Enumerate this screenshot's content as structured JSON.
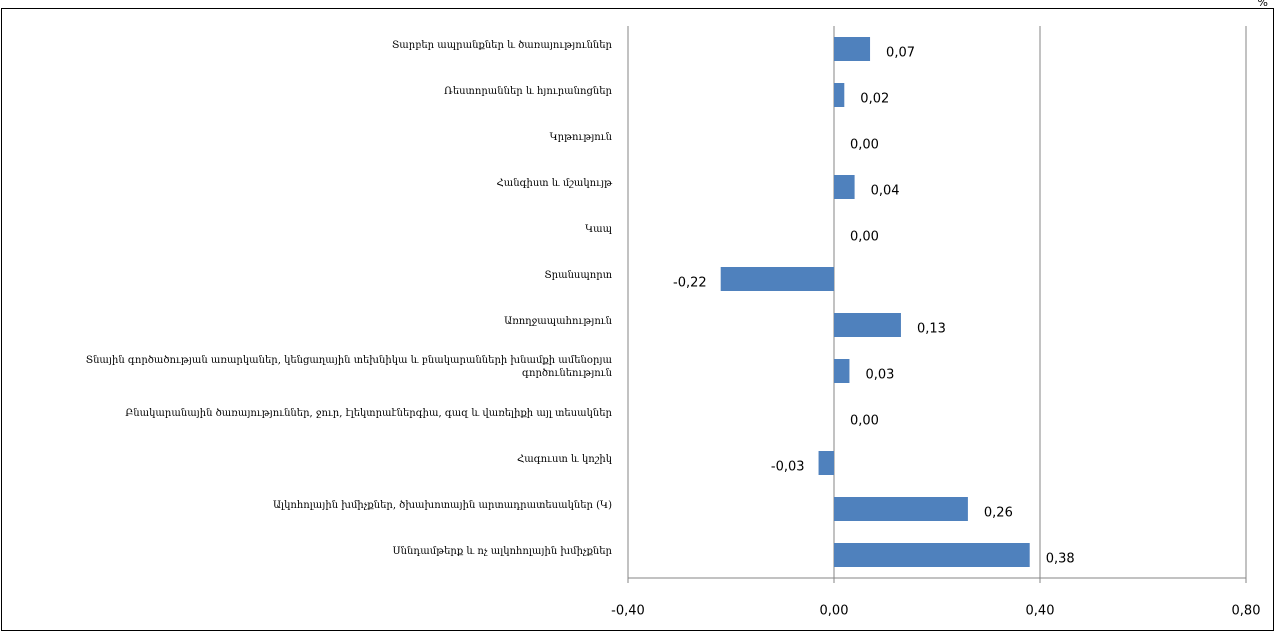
{
  "chart_data": {
    "type": "barh",
    "unit": "%",
    "categories": [
      "Տարբեր ապրանքներ և ծառայություններ",
      "Ռեստորաններ և հյուրանոցներ",
      "Կրթություն",
      "Հանգիստ և մշակույթ",
      "Կապ",
      "Տրանսպորտ",
      "Առողջապահություն",
      "Տնային գործածության առարկաներ, կենցաղային տեխնիկա և բնակարանների խնամքի ամենօրյա գործունեություն",
      "Բնակարանային ծառայություններ, ջուր, էլեկտրաէներգիա, գազ և վառելիքի այլ տեսակներ",
      "Հագուստ և կոշիկ",
      "Ալկոհոլային խմիչքներ, ծխախոտային արտադրատեսակներ (Կ)",
      "Սննդամթերք և ոչ ալկոհոլային խմիչքներ"
    ],
    "values": [
      0.07,
      0.02,
      0.0,
      0.04,
      0.0,
      -0.22,
      0.13,
      0.03,
      0.0,
      -0.03,
      0.26,
      0.38
    ],
    "value_labels": [
      "0,07",
      "0,02",
      "0,00",
      "0,04",
      "0,00",
      "-0,22",
      "0,13",
      "0,03",
      "0,00",
      "-0,03",
      "0,26",
      "0,38"
    ],
    "color": "#4f81bd",
    "xlim": [
      -0.4,
      0.8
    ],
    "xticks": [
      {
        "value": -0.4,
        "label": "-0,40"
      },
      {
        "value": 0,
        "label": "0,00"
      },
      {
        "value": 0.4,
        "label": "0,40"
      },
      {
        "value": 0.8,
        "label": "0,80"
      }
    ],
    "grid": true
  }
}
